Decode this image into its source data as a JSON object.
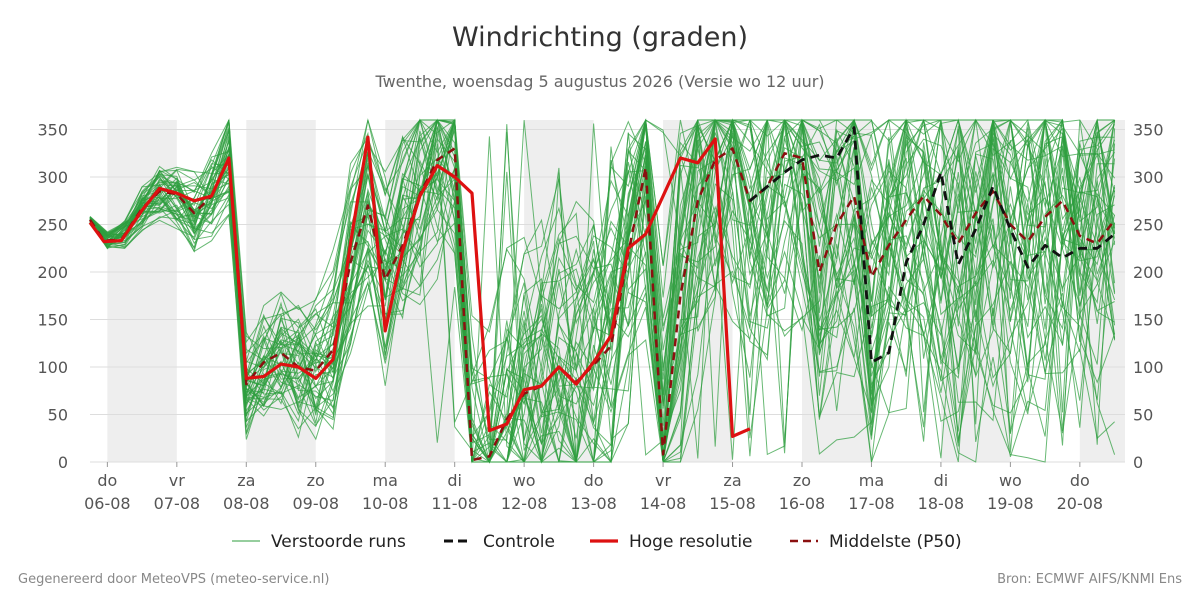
{
  "title": "Windrichting (graden)",
  "subtitle": "Twenthe, woensdag  5 augustus 2026 (Versie wo 12 uur)",
  "footer_left": "Gegenereerd door MeteoVPS (meteo-service.nl)",
  "footer_right": "Bron: ECMWF AIFS/KNMI Ens",
  "colors": {
    "ensemble": "#2e9e3e",
    "control": "#111111",
    "highres": "#dd1111",
    "median": "#8b1010",
    "night_band": "#eeeeee",
    "grid": "#dddddd"
  },
  "chart_data": {
    "type": "line",
    "ylim": [
      0,
      360
    ],
    "yticks": [
      0,
      50,
      100,
      150,
      200,
      250,
      300,
      350
    ],
    "xlim": [
      -0.25,
      14.65
    ],
    "x_ticks": [
      {
        "x": 0,
        "day": "do",
        "date": "06-08"
      },
      {
        "x": 1,
        "day": "vr",
        "date": "07-08"
      },
      {
        "x": 2,
        "day": "za",
        "date": "08-08"
      },
      {
        "x": 3,
        "day": "zo",
        "date": "09-08"
      },
      {
        "x": 4,
        "day": "ma",
        "date": "10-08"
      },
      {
        "x": 5,
        "day": "di",
        "date": "11-08"
      },
      {
        "x": 6,
        "day": "wo",
        "date": "12-08"
      },
      {
        "x": 7,
        "day": "do",
        "date": "13-08"
      },
      {
        "x": 8,
        "day": "vr",
        "date": "14-08"
      },
      {
        "x": 9,
        "day": "za",
        "date": "15-08"
      },
      {
        "x": 10,
        "day": "zo",
        "date": "16-08"
      },
      {
        "x": 11,
        "day": "ma",
        "date": "17-08"
      },
      {
        "x": 12,
        "day": "di",
        "date": "18-08"
      },
      {
        "x": 13,
        "day": "wo",
        "date": "19-08"
      },
      {
        "x": 14,
        "day": "do",
        "date": "20-08"
      }
    ],
    "legend": [
      {
        "label": "Verstoorde runs",
        "style": "ensemble"
      },
      {
        "label": "Controle",
        "style": "control"
      },
      {
        "label": "Hoge resolutie",
        "style": "highres"
      },
      {
        "label": "Middelste (P50)",
        "style": "median"
      }
    ],
    "series": [
      {
        "name": "Hoge resolutie",
        "style": "highres",
        "x": [
          -0.25,
          -0.05,
          0.2,
          0.5,
          0.75,
          1.0,
          1.25,
          1.5,
          1.75,
          2.0,
          2.25,
          2.5,
          2.75,
          3.0,
          3.25,
          3.5,
          3.75,
          4.0,
          4.25,
          4.5,
          4.75,
          5.0,
          5.25,
          5.5,
          5.75,
          6.0,
          6.25,
          6.5,
          6.75,
          7.0,
          7.25,
          7.5,
          7.75,
          8.0,
          8.25,
          8.5,
          8.75,
          9.0,
          9.25
        ],
        "y": [
          252,
          232,
          233,
          265,
          288,
          283,
          275,
          280,
          320,
          88,
          90,
          103,
          100,
          88,
          108,
          230,
          342,
          138,
          222,
          280,
          312,
          300,
          283,
          33,
          40,
          76,
          80,
          100,
          82,
          105,
          133,
          225,
          240,
          280,
          320,
          315,
          340,
          27,
          35
        ]
      },
      {
        "name": "Middelste (P50)",
        "style": "median",
        "x": [
          -0.25,
          -0.05,
          0.2,
          0.5,
          0.75,
          1.0,
          1.25,
          1.5,
          1.75,
          2.0,
          2.25,
          2.5,
          2.75,
          3.0,
          3.25,
          3.5,
          3.75,
          4.0,
          4.25,
          4.5,
          4.75,
          5.0,
          5.25,
          5.5,
          5.75,
          6.0,
          6.25,
          6.5,
          6.75,
          7.0,
          7.25,
          7.5,
          7.75,
          8.0,
          8.25,
          8.5,
          8.75,
          9.0,
          9.25,
          9.5,
          9.75,
          10.0,
          10.25,
          10.5,
          10.75,
          11.0,
          11.25,
          11.5,
          11.75,
          12.0,
          12.25,
          12.5,
          12.75,
          13.0,
          13.25,
          13.5,
          13.75,
          14.0,
          14.25,
          14.5
        ],
        "y": [
          255,
          233,
          234,
          267,
          285,
          282,
          262,
          280,
          320,
          82,
          105,
          115,
          100,
          96,
          118,
          210,
          270,
          192,
          228,
          282,
          318,
          330,
          2,
          6,
          45,
          72,
          80,
          100,
          84,
          102,
          122,
          220,
          310,
          8,
          175,
          275,
          318,
          330,
          275,
          290,
          325,
          320,
          200,
          250,
          280,
          195,
          228,
          255,
          280,
          260,
          230,
          262,
          285,
          250,
          232,
          258,
          275,
          238,
          230,
          255
        ]
      },
      {
        "name": "Controle",
        "style": "control",
        "x": [
          9.25,
          9.5,
          9.75,
          10.0,
          10.25,
          10.5,
          10.75,
          11.0,
          11.25,
          11.5,
          11.75,
          12.0,
          12.25,
          12.5,
          12.75,
          13.0,
          13.25,
          13.5,
          13.75,
          14.0,
          14.25,
          14.5
        ],
        "y": [
          275,
          290,
          305,
          318,
          323,
          320,
          352,
          105,
          115,
          210,
          250,
          305,
          208,
          245,
          290,
          245,
          205,
          228,
          215,
          225,
          225,
          240
        ]
      }
    ]
  }
}
